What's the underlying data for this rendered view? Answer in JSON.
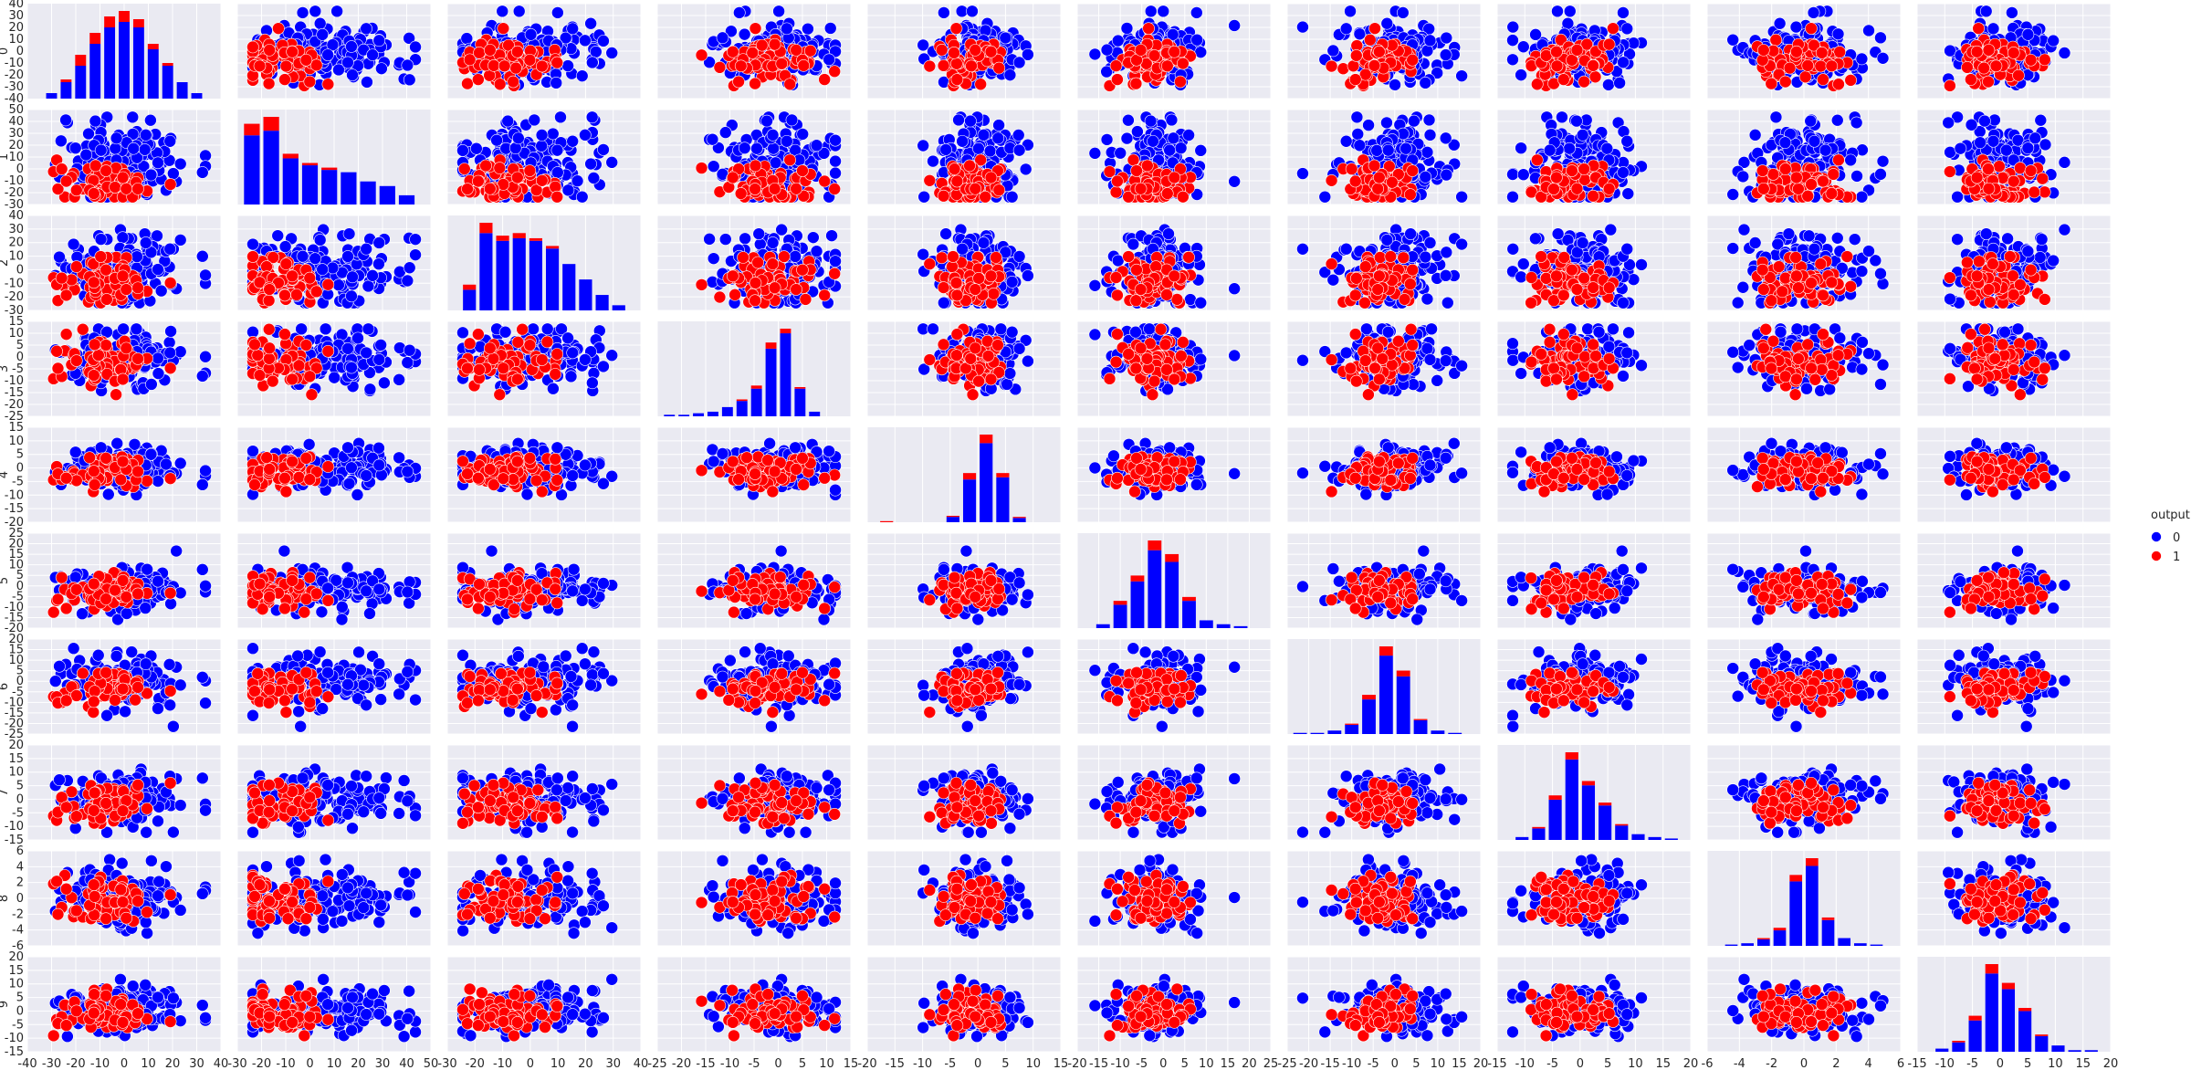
{
  "chart_data": {
    "type": "scatter",
    "kind": "pairplot",
    "variables": [
      "0",
      "1",
      "2",
      "3",
      "4",
      "5",
      "6",
      "7",
      "8",
      "9"
    ],
    "hue": "output",
    "legend": {
      "title": "output",
      "placement": "right",
      "entries": [
        {
          "name": "0",
          "color": "#0000ff"
        },
        {
          "name": "1",
          "color": "#ff0000"
        }
      ]
    },
    "grid": true,
    "diagonal": "stacked-histogram",
    "ranges": [
      [
        -40,
        40
      ],
      [
        -30,
        50
      ],
      [
        -30,
        40
      ],
      [
        -25,
        15
      ],
      [
        -20,
        15
      ],
      [
        -20,
        25
      ],
      [
        -25,
        20
      ],
      [
        -15,
        20
      ],
      [
        -6,
        6
      ],
      [
        -15,
        20
      ]
    ],
    "x_ticks": [
      [
        -40,
        -30,
        -20,
        -10,
        0,
        10,
        20,
        30,
        40
      ],
      [
        -30,
        -20,
        -10,
        0,
        10,
        20,
        30,
        40,
        50
      ],
      [
        -30,
        -20,
        -10,
        0,
        10,
        20,
        30,
        40
      ],
      [
        -25,
        -20,
        -15,
        -10,
        -5,
        0,
        5,
        10,
        15
      ],
      [
        -20,
        -15,
        -10,
        -5,
        0,
        5,
        10,
        15
      ],
      [
        -20,
        -15,
        -10,
        -5,
        0,
        5,
        10,
        15,
        20,
        25
      ],
      [
        -25,
        -20,
        -15,
        -10,
        -5,
        0,
        5,
        10,
        15,
        20
      ],
      [
        -15,
        -10,
        -5,
        0,
        5,
        10,
        15,
        20
      ],
      [
        -6,
        -4,
        -2,
        0,
        2,
        4,
        6
      ],
      [
        -15,
        -10,
        -5,
        0,
        5,
        10,
        15,
        20
      ]
    ],
    "y_ticks": [
      [
        -40,
        -30,
        -20,
        -10,
        0,
        10,
        20,
        30,
        40
      ],
      [
        -30,
        -20,
        -10,
        0,
        10,
        20,
        30,
        40,
        50
      ],
      [
        -30,
        -20,
        -10,
        0,
        10,
        20,
        30,
        40
      ],
      [
        -25,
        -20,
        -15,
        -10,
        -5,
        0,
        5,
        10,
        15
      ],
      [
        -20,
        -15,
        -10,
        -5,
        0,
        5,
        10,
        15
      ],
      [
        -20,
        -15,
        -10,
        -5,
        0,
        5,
        10,
        15,
        20,
        25
      ],
      [
        -25,
        -20,
        -15,
        -10,
        -5,
        0,
        5,
        10,
        15,
        20
      ],
      [
        -15,
        -10,
        -5,
        0,
        5,
        10,
        15,
        20
      ],
      [
        -6,
        -4,
        -2,
        0,
        2,
        4,
        6
      ],
      [
        -15,
        -10,
        -5,
        0,
        5,
        10,
        15,
        20
      ]
    ],
    "distributions": {
      "centers_0": [
        0,
        5,
        0,
        0,
        0,
        0,
        0,
        0,
        0,
        0
      ],
      "spreads_0": [
        13,
        16,
        13,
        6,
        4,
        5,
        6,
        5,
        1.8,
        4
      ],
      "centers_1": [
        -8,
        -12,
        -8,
        -2,
        -1,
        -2,
        -3,
        -2,
        -0.5,
        -1
      ],
      "spreads_1": [
        10,
        8,
        8,
        5,
        3,
        4,
        4,
        4,
        1.5,
        3
      ]
    },
    "histograms": [
      {
        "variable": "0",
        "bins": [
          -33,
          -27,
          -21,
          -15,
          -9,
          -3,
          3,
          9,
          15,
          21,
          27,
          33
        ],
        "blue": [
          2,
          6,
          12,
          20,
          26,
          28,
          26,
          18,
          12,
          6,
          2
        ],
        "red": [
          0,
          1,
          4,
          4,
          4,
          4,
          3,
          2,
          1,
          0,
          0
        ]
      },
      {
        "variable": "1",
        "bins": [
          -28,
          -20,
          -12,
          -4,
          4,
          12,
          20,
          28,
          36,
          44
        ],
        "blue": [
          30,
          32,
          20,
          17,
          15,
          14,
          10,
          8,
          4
        ],
        "red": [
          5,
          6,
          2,
          1,
          1,
          0,
          0,
          0,
          0
        ]
      },
      {
        "variable": "2",
        "bins": [
          -25,
          -19,
          -13,
          -7,
          -1,
          5,
          11,
          17,
          23,
          29,
          35
        ],
        "blue": [
          8,
          30,
          27,
          28,
          27,
          24,
          18,
          12,
          6,
          2
        ],
        "red": [
          2,
          4,
          2,
          2,
          1,
          1,
          0,
          0,
          0,
          0
        ]
      },
      {
        "variable": "3",
        "bins": [
          -24,
          -21,
          -18,
          -15,
          -12,
          -9,
          -6,
          -3,
          0,
          3,
          6,
          9,
          12
        ],
        "blue": [
          1,
          1,
          2,
          3,
          6,
          10,
          18,
          44,
          54,
          18,
          3,
          0
        ],
        "red": [
          0,
          0,
          0,
          0,
          0,
          1,
          2,
          4,
          3,
          1,
          0,
          0
        ]
      },
      {
        "variable": "4",
        "bins": [
          -18,
          -15,
          -12,
          -9,
          -6,
          -3,
          0,
          3,
          6,
          9
        ],
        "blue": [
          0,
          0,
          0,
          0,
          5,
          40,
          74,
          42,
          4
        ],
        "red": [
          1,
          0,
          0,
          0,
          1,
          6,
          8,
          4,
          1
        ]
      },
      {
        "variable": "5",
        "bins": [
          -20,
          -16,
          -12,
          -8,
          -4,
          0,
          4,
          8,
          12,
          16,
          20
        ],
        "blue": [
          0,
          2,
          12,
          24,
          40,
          34,
          14,
          4,
          2,
          1
        ],
        "red": [
          0,
          0,
          2,
          3,
          5,
          4,
          2,
          0,
          0,
          0
        ]
      },
      {
        "variable": "6",
        "bins": [
          -24,
          -20,
          -16,
          -12,
          -8,
          -4,
          0,
          4,
          8,
          12,
          16
        ],
        "blue": [
          1,
          1,
          3,
          8,
          30,
          68,
          50,
          12,
          3,
          1
        ],
        "red": [
          0,
          0,
          0,
          1,
          4,
          8,
          5,
          1,
          0,
          0
        ]
      },
      {
        "variable": "7",
        "bins": [
          -12,
          -9,
          -6,
          -3,
          0,
          3,
          6,
          9,
          12,
          15,
          18
        ],
        "blue": [
          2,
          8,
          28,
          56,
          38,
          24,
          10,
          4,
          2,
          1
        ],
        "red": [
          0,
          1,
          3,
          5,
          3,
          2,
          1,
          0,
          0,
          0
        ]
      },
      {
        "variable": "8",
        "bins": [
          -5,
          -4,
          -3,
          -2,
          -1,
          0,
          1,
          2,
          3,
          4,
          5
        ],
        "blue": [
          1,
          2,
          5,
          12,
          50,
          62,
          20,
          6,
          2,
          1
        ],
        "red": [
          0,
          0,
          1,
          2,
          5,
          6,
          2,
          0,
          0,
          0
        ]
      },
      {
        "variable": "9",
        "bins": [
          -12,
          -9,
          -6,
          -3,
          0,
          3,
          6,
          9,
          12,
          15,
          18
        ],
        "blue": [
          2,
          6,
          20,
          50,
          40,
          26,
          10,
          4,
          1,
          1
        ],
        "red": [
          0,
          1,
          3,
          6,
          4,
          2,
          1,
          0,
          0,
          0
        ]
      }
    ]
  }
}
